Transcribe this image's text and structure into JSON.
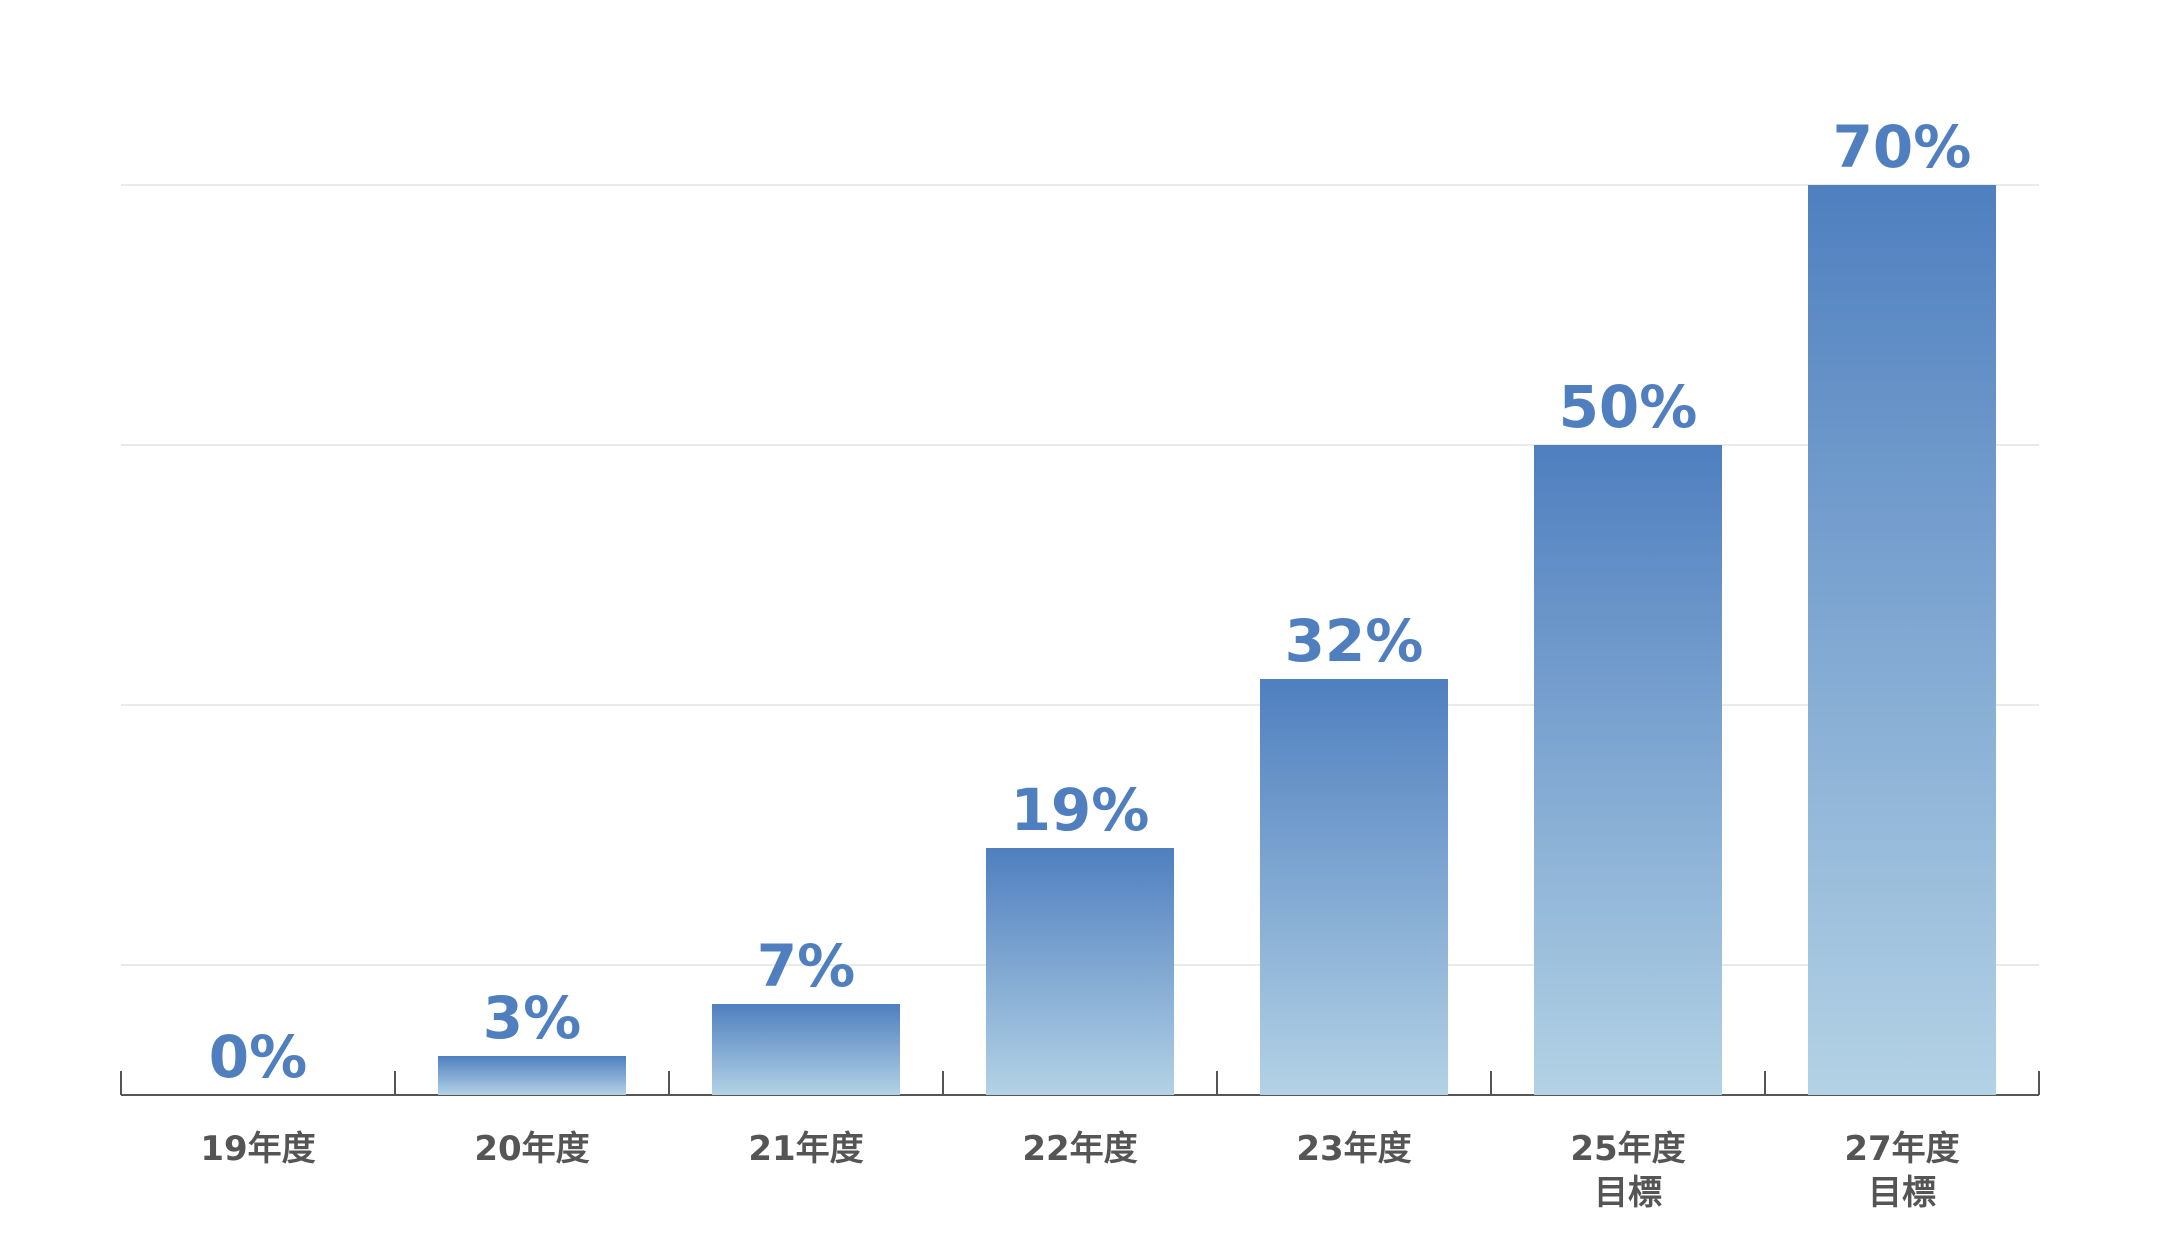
{
  "chart_data": {
    "type": "bar",
    "categories": [
      "19年度",
      "20年度",
      "21年度",
      "22年度",
      "23年度",
      "25年度\n目標",
      "27年度\n目標"
    ],
    "values": [
      0,
      3,
      7,
      19,
      32,
      50,
      70
    ],
    "value_labels": [
      "0%",
      "3%",
      "7%",
      "19%",
      "32%",
      "50%",
      "70%"
    ],
    "color": [
      "#4f7fbf",
      "#b3d2e5"
    ],
    "ylim": [
      0,
      70
    ],
    "yticks": [
      10,
      30,
      50,
      70
    ],
    "grid": true
  }
}
